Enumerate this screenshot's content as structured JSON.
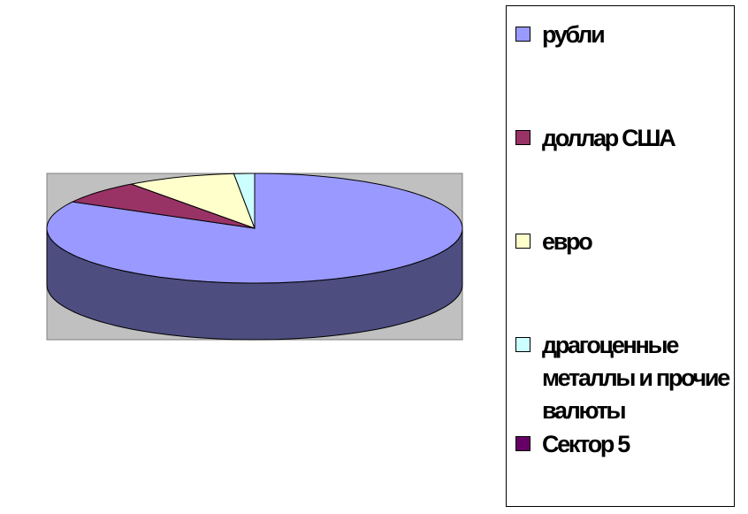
{
  "chart_data": {
    "type": "pie",
    "style": "3d",
    "title": "",
    "legend_position": "right",
    "plot_background": "#c0c0c0",
    "series": [
      {
        "name": "рубли",
        "value": 83.0,
        "color": "#9999ff"
      },
      {
        "name": "доллар США",
        "value": 6.9,
        "color": "#993366"
      },
      {
        "name": "евро",
        "value": 8.5,
        "color": "#ffffcc"
      },
      {
        "name": "драгоценные металлы и прочие валюты",
        "value": 1.6,
        "color": "#ccffff"
      },
      {
        "name": "Сектор 5",
        "value": 0,
        "color": "#660066"
      }
    ]
  }
}
